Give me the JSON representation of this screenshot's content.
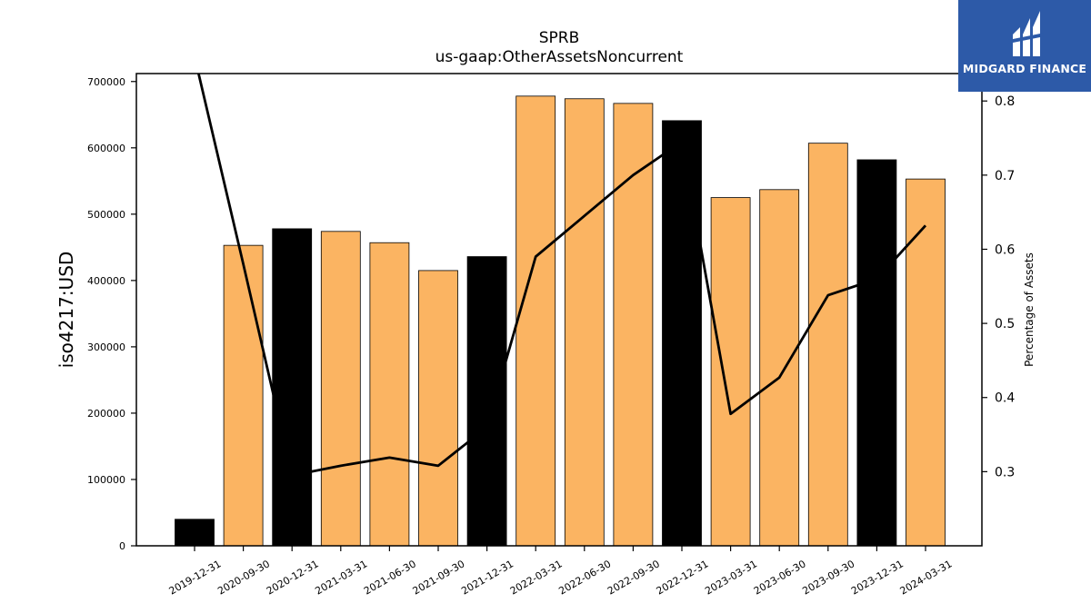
{
  "chart_data": {
    "type": "bar+line",
    "title": "SPRB",
    "subtitle": "us-gaap:OtherAssetsNoncurrent",
    "ylabel": "iso4217:USD",
    "y2label": "Percentage of Assets",
    "ylim": [
      0,
      712000
    ],
    "y2lim": [
      0.2,
      0.837
    ],
    "yticks": [
      0,
      100000,
      200000,
      300000,
      400000,
      500000,
      600000,
      700000
    ],
    "y2ticks": [
      "0.3",
      "0.4",
      "0.5",
      "0.6",
      "0.7",
      "0.8"
    ],
    "categories": [
      "2019-12-31",
      "2020-09-30",
      "2020-12-31",
      "2021-03-31",
      "2021-06-30",
      "2021-09-30",
      "2021-12-31",
      "2022-03-31",
      "2022-06-30",
      "2022-09-30",
      "2022-12-31",
      "2023-03-31",
      "2023-06-30",
      "2023-09-30",
      "2023-12-31",
      "2024-03-31"
    ],
    "bars": {
      "values": [
        40000,
        453000,
        478000,
        474000,
        457000,
        415000,
        436000,
        678000,
        674000,
        667000,
        641000,
        525000,
        537000,
        607000,
        582000,
        553000
      ],
      "highlight": [
        true,
        false,
        true,
        false,
        false,
        false,
        true,
        false,
        false,
        false,
        true,
        false,
        false,
        false,
        true,
        false
      ],
      "color": "#fbb462",
      "highlight_color": "#000000"
    },
    "line": {
      "values": [
        0.86,
        0.58,
        0.295,
        0.308,
        0.319,
        0.308,
        0.36,
        0.59,
        0.645,
        0.7,
        0.745,
        0.378,
        0.427,
        0.538,
        0.56,
        0.632
      ],
      "color": "#000000"
    }
  },
  "logo": {
    "text": "MIDGARD FINANCE",
    "color": "#2d5aa8"
  }
}
